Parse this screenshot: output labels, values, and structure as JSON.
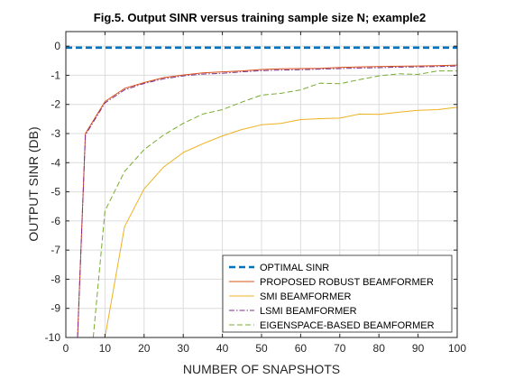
{
  "chart_data": {
    "type": "line",
    "title": "Fig.5. Output SINR versus training sample size N; example2",
    "xlabel": "NUMBER OF SNAPSHOTS",
    "ylabel": "OUTPUT SINR (DB)",
    "xlim": [
      0,
      100
    ],
    "ylim": [
      -10,
      0.5
    ],
    "xticks": [
      "0",
      "10",
      "20",
      "30",
      "40",
      "50",
      "60",
      "70",
      "80",
      "90",
      "100"
    ],
    "yticks": [
      "0",
      "-1",
      "-2",
      "-3",
      "-4",
      "-5",
      "-6",
      "-7",
      "-8",
      "-9",
      "-10"
    ],
    "grid": true,
    "legend_position": "bottom-right",
    "series": [
      {
        "name": "OPTIMAL SINR",
        "color": "#0072BD",
        "style": "dashed-thick",
        "x": [
          0,
          100
        ],
        "y": [
          -0.05,
          -0.05
        ]
      },
      {
        "name": "PROPOSED ROBUST BEAMFORMER",
        "color": "#D95319",
        "style": "solid",
        "x": [
          3,
          5,
          10,
          15,
          20,
          25,
          30,
          35,
          40,
          45,
          50,
          55,
          60,
          65,
          70,
          75,
          80,
          85,
          90,
          95,
          100
        ],
        "y": [
          -10,
          -3.0,
          -1.9,
          -1.45,
          -1.25,
          -1.08,
          -0.99,
          -0.92,
          -0.88,
          -0.85,
          -0.8,
          -0.78,
          -0.77,
          -0.76,
          -0.73,
          -0.71,
          -0.7,
          -0.69,
          -0.68,
          -0.67,
          -0.65
        ]
      },
      {
        "name": "SMI BEAMFORMER",
        "color": "#EDB120",
        "style": "solid",
        "x": [
          10,
          15,
          20,
          25,
          30,
          35,
          40,
          45,
          50,
          55,
          60,
          65,
          70,
          75,
          80,
          85,
          90,
          95,
          100
        ],
        "y": [
          -10,
          -6.2,
          -4.9,
          -4.15,
          -3.65,
          -3.35,
          -3.08,
          -2.86,
          -2.7,
          -2.65,
          -2.52,
          -2.49,
          -2.47,
          -2.33,
          -2.34,
          -2.27,
          -2.2,
          -2.18,
          -2.1
        ]
      },
      {
        "name": "LSMI BEAMFORMER",
        "color": "#7E2F8E",
        "style": "dashdot",
        "x": [
          3,
          5,
          10,
          15,
          20,
          25,
          30,
          35,
          40,
          45,
          50,
          55,
          60,
          65,
          70,
          75,
          80,
          85,
          90,
          95,
          100
        ],
        "y": [
          -10,
          -3.05,
          -1.95,
          -1.5,
          -1.28,
          -1.12,
          -1.02,
          -0.96,
          -0.93,
          -0.88,
          -0.84,
          -0.82,
          -0.81,
          -0.79,
          -0.77,
          -0.75,
          -0.74,
          -0.72,
          -0.71,
          -0.7,
          -0.68
        ]
      },
      {
        "name": "EIGENSPACE-BASED BEAMFORMER",
        "color": "#77AC30",
        "style": "dashed",
        "x": [
          7,
          10,
          15,
          20,
          25,
          30,
          35,
          40,
          45,
          50,
          55,
          60,
          65,
          70,
          75,
          80,
          85,
          90,
          95,
          100
        ],
        "y": [
          -10,
          -5.65,
          -4.3,
          -3.55,
          -3.05,
          -2.65,
          -2.33,
          -2.18,
          -1.92,
          -1.68,
          -1.62,
          -1.5,
          -1.27,
          -1.29,
          -1.15,
          -1.02,
          -0.95,
          -0.97,
          -0.85,
          -0.85
        ]
      }
    ]
  }
}
